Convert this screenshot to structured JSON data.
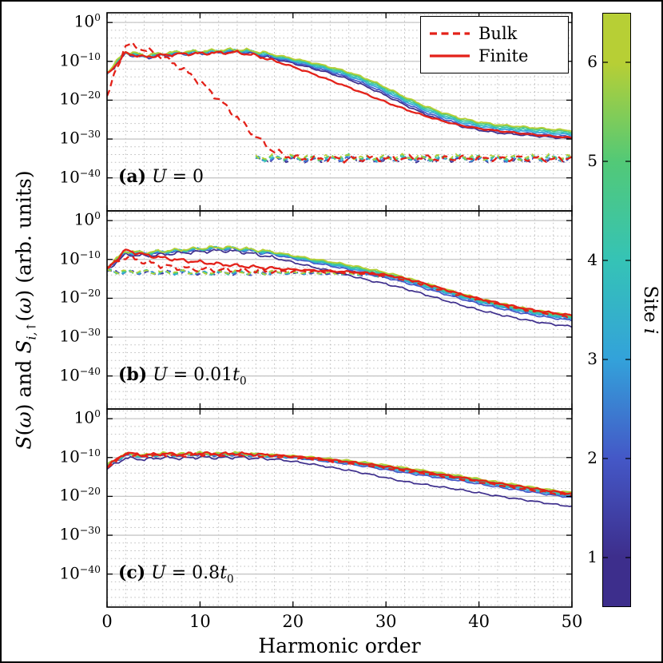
{
  "chart_data": {
    "type": "line",
    "xlabel": "Harmonic order",
    "ylabel": "S(ω) and S_i,↑(ω) (arb. units)",
    "ylabel_parts": [
      {
        "text": "S",
        "italic": true
      },
      {
        "text": "(",
        "italic": false
      },
      {
        "text": "ω",
        "italic": true
      },
      {
        "text": ") and ",
        "italic": false
      },
      {
        "text": "S",
        "italic": true
      },
      {
        "text": "i,↑",
        "italic": true,
        "sub": true
      },
      {
        "text": "(",
        "italic": false
      },
      {
        "text": "ω",
        "italic": true
      },
      {
        "text": ") (arb. units)",
        "italic": false
      }
    ],
    "xlim": [
      0,
      50
    ],
    "x_ticks": [
      0,
      10,
      20,
      30,
      40,
      50
    ],
    "y_ticks_exp": [
      0,
      -10,
      -20,
      -30,
      -40
    ],
    "ylim_exp": [
      2.5,
      -48.5
    ],
    "grid": "dotted-minor, solid-major-horizontal",
    "red": "#e32119",
    "site_colors": [
      "#3d2e8c",
      "#4458c7",
      "#33a2da",
      "#35c3b6",
      "#52c977",
      "#b7cf35"
    ],
    "legend": [
      {
        "label": "Bulk",
        "style": "dashed",
        "color": "#e32119"
      },
      {
        "label": "Finite",
        "style": "solid",
        "color": "#e32119"
      }
    ],
    "colorbar": {
      "label": "Site i",
      "label_parts": [
        {
          "text": "Site ",
          "italic": false
        },
        {
          "text": "i",
          "italic": true
        }
      ],
      "ticks": [
        1,
        2,
        3,
        4,
        5,
        6
      ]
    },
    "panels": [
      {
        "tag": "(a)",
        "label": "U = 0",
        "series": [
          {
            "name": "bulk-sites-floor",
            "kind": "sites",
            "style": "dashed",
            "x0": 16,
            "step": 2,
            "jitter": 0.9,
            "tail": 1,
            "base": [
              -35.1,
              -35.0,
              -34.9,
              -35.1,
              -35.0,
              -34.8,
              -35.2,
              -35.0,
              -34.9,
              -35.1,
              -35.0,
              -34.8,
              -35.1,
              -34.9,
              -35.2,
              -35.0,
              -34.9,
              -35.1
            ],
            "spread": [
              1,
              1,
              1,
              1,
              1,
              1,
              1,
              1,
              1,
              1,
              1,
              1,
              1,
              1,
              1,
              1,
              1,
              1
            ],
            "offsets": [
              -0.35,
              -0.2,
              -0.07,
              0.07,
              0.2,
              0.35
            ]
          },
          {
            "name": "finite-sites",
            "kind": "sites",
            "style": "solid",
            "x0": 0,
            "step": 2,
            "jitter": 0.55,
            "tail": 0.5,
            "base": [
              -13.0,
              -7.6,
              -8.6,
              -8.1,
              -7.7,
              -7.6,
              -7.3,
              -7.1,
              -7.6,
              -8.6,
              -9.6,
              -10.7,
              -11.9,
              -13.3,
              -15.1,
              -17.3,
              -19.7,
              -21.9,
              -23.7,
              -25.2,
              -26.2,
              -26.9,
              -27.3,
              -27.7,
              -28.1,
              -28.4
            ],
            "spread": [
              0.3,
              0.3,
              0.3,
              0.3,
              0.3,
              0.3,
              0.3,
              0.3,
              0.4,
              0.5,
              0.6,
              0.7,
              0.8,
              0.9,
              1,
              1,
              1,
              1,
              1,
              1,
              1,
              1,
              1,
              1,
              1,
              1
            ],
            "offsets": [
              -1.5,
              -1.0,
              -0.5,
              -0.1,
              0.3,
              0.6
            ]
          },
          {
            "name": "bulk-red",
            "kind": "single",
            "color": "red",
            "style": "dashed",
            "x0": 0,
            "step": 2,
            "jitter": 1.0,
            "tail": 1,
            "values": [
              -19,
              -5.6,
              -6.9,
              -8.9,
              -11.7,
              -15.3,
              -19.7,
              -24.5,
              -29.3,
              -33.3,
              -34.8,
              -35.1,
              -34.9,
              -35.2,
              -34.9,
              -35.1,
              -35.0,
              -34.8,
              -35.2,
              -35.0,
              -34.9,
              -35.1,
              -34.8,
              -35.0,
              -35.2,
              -34.7
            ]
          },
          {
            "name": "finite-red",
            "kind": "single",
            "color": "red",
            "style": "solid",
            "x0": 0,
            "step": 2,
            "jitter": 0.5,
            "tail": 0.45,
            "values": [
              -13.5,
              -7.9,
              -8.9,
              -8.4,
              -8.1,
              -8.0,
              -7.8,
              -7.7,
              -8.5,
              -9.9,
              -11.4,
              -13.1,
              -14.9,
              -16.7,
              -18.6,
              -20.5,
              -22.3,
              -23.9,
              -25.3,
              -26.5,
              -27.3,
              -27.9,
              -28.4,
              -28.9,
              -29.3,
              -29.7
            ]
          }
        ]
      },
      {
        "tag": "(b)",
        "label": "U = 0.01t_0",
        "series": [
          {
            "name": "bulk-sites",
            "kind": "sites",
            "style": "dashed",
            "x0": 0,
            "step": 2,
            "jitter": 0.7,
            "tail": 0.5,
            "base": [
              -13.0,
              -13.3,
              -13.2,
              -13.4,
              -13.3,
              -13.5,
              -13.4,
              -13.4,
              -13.5,
              -13.4,
              -13.5,
              -13.5,
              -13.6,
              -13.7,
              -13.9,
              -14.4,
              -15.3,
              -16.5,
              -17.9,
              -19.3,
              -20.5,
              -21.6,
              -22.6,
              -23.5,
              -24.2,
              -24.8
            ],
            "spread": [
              0.3,
              0.3,
              0.3,
              0.3,
              0.3,
              0.3,
              0.3,
              0.3,
              0.3,
              0.3,
              0.3,
              0.3,
              0.3,
              0.3,
              0.4,
              0.5,
              0.6,
              0.7,
              0.8,
              0.9,
              1,
              1,
              1,
              1,
              1,
              1
            ],
            "offsets": [
              -0.4,
              -0.25,
              -0.1,
              0.05,
              0.2,
              0.35
            ]
          },
          {
            "name": "finite-sites",
            "kind": "sites",
            "style": "solid",
            "x0": 0,
            "step": 2,
            "jitter": 0.55,
            "tail": 0.5,
            "base": [
              -12.0,
              -8.0,
              -8.4,
              -8.0,
              -7.6,
              -7.3,
              -7.0,
              -7.2,
              -7.7,
              -8.4,
              -9.3,
              -10.2,
              -11.0,
              -11.9,
              -12.9,
              -13.9,
              -15.1,
              -16.5,
              -17.9,
              -19.3,
              -20.6,
              -21.7,
              -22.7,
              -23.6,
              -24.3,
              -24.9
            ],
            "spread": [
              0.3,
              0.3,
              0.3,
              0.3,
              0.3,
              0.3,
              0.3,
              0.3,
              0.4,
              0.5,
              0.6,
              0.7,
              0.8,
              0.9,
              1,
              1,
              1,
              1,
              1,
              1,
              1,
              1,
              1,
              1,
              1,
              1
            ],
            "offsets": [
              -2.4,
              -0.8,
              -0.35,
              -0.05,
              0.25,
              0.55
            ]
          },
          {
            "name": "bulk-red",
            "kind": "single",
            "color": "red",
            "style": "dashed",
            "x0": 0,
            "step": 2,
            "jitter": 0.85,
            "tail": 0.5,
            "values": [
              -12.0,
              -9.3,
              -10.6,
              -11.6,
              -12.2,
              -12.5,
              -12.6,
              -12.8,
              -12.9,
              -13.0,
              -13.0,
              -13.1,
              -13.2,
              -13.3,
              -13.6,
              -14.2,
              -15.2,
              -16.4,
              -17.8,
              -19.2,
              -20.4,
              -21.5,
              -22.5,
              -23.4,
              -24.1,
              -24.7
            ]
          },
          {
            "name": "finite-red",
            "kind": "single",
            "color": "red",
            "style": "solid",
            "x0": 0,
            "step": 2,
            "jitter": 0.55,
            "tail": 0.5,
            "values": [
              -12.5,
              -7.6,
              -8.8,
              -9.6,
              -10.2,
              -10.7,
              -11.2,
              -11.6,
              -12.0,
              -12.3,
              -12.6,
              -12.8,
              -13.0,
              -13.2,
              -13.5,
              -14.0,
              -14.9,
              -16.1,
              -17.5,
              -18.9,
              -20.1,
              -21.2,
              -22.2,
              -23.1,
              -23.8,
              -24.4
            ]
          }
        ]
      },
      {
        "tag": "(c)",
        "label": "U = 0.8t_0",
        "series": [
          {
            "name": "finite-sites",
            "kind": "sites",
            "style": "solid",
            "x0": 0,
            "step": 2,
            "jitter": 0.5,
            "tail": 0.5,
            "base": [
              -12.0,
              -9.2,
              -9.6,
              -9.1,
              -9.3,
              -9.0,
              -9.2,
              -9.0,
              -9.3,
              -9.5,
              -9.8,
              -10.2,
              -10.7,
              -11.2,
              -11.8,
              -12.5,
              -13.2,
              -13.9,
              -14.6,
              -15.3,
              -16.1,
              -16.9,
              -17.6,
              -18.3,
              -19.0,
              -19.6
            ],
            "spread": [
              0.3,
              0.3,
              0.3,
              0.3,
              0.3,
              0.3,
              0.3,
              0.3,
              0.3,
              0.3,
              0.4,
              0.5,
              0.6,
              0.7,
              0.8,
              0.9,
              1,
              1,
              1,
              1,
              1,
              1,
              1,
              1,
              1,
              1
            ],
            "offsets": [
              -3.0,
              -0.7,
              -0.3,
              0.0,
              0.3,
              0.6
            ]
          },
          {
            "name": "bulk-red",
            "kind": "single",
            "color": "red",
            "style": "dashed",
            "x0": 0,
            "step": 2,
            "jitter": 0.5,
            "tail": 0.5,
            "values": [
              -12.6,
              -9.1,
              -9.7,
              -9.3,
              -9.5,
              -9.2,
              -9.4,
              -9.3,
              -9.5,
              -9.7,
              -10.0,
              -10.4,
              -10.9,
              -11.4,
              -12.0,
              -12.7,
              -13.4,
              -14.1,
              -14.8,
              -15.5,
              -16.3,
              -17.1,
              -17.8,
              -18.5,
              -19.2,
              -19.8
            ]
          },
          {
            "name": "finite-red",
            "kind": "single",
            "color": "red",
            "style": "solid",
            "x0": 0,
            "step": 2,
            "jitter": 0.5,
            "tail": 0.5,
            "values": [
              -12.3,
              -8.8,
              -9.4,
              -9.0,
              -9.2,
              -8.9,
              -9.1,
              -9.0,
              -9.2,
              -9.4,
              -9.7,
              -10.1,
              -10.6,
              -11.1,
              -11.7,
              -12.3,
              -13.0,
              -13.7,
              -14.4,
              -15.1,
              -15.9,
              -16.6,
              -17.3,
              -18.0,
              -18.7,
              -19.3
            ]
          }
        ]
      }
    ]
  }
}
